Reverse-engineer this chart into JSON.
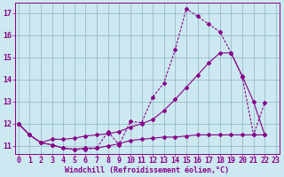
{
  "bg_color": "#cce8f0",
  "line_color": "#880088",
  "grid_color": "#99bbcc",
  "xlabel": "Windchill (Refroidissement éolien,°C)",
  "xlabel_fontsize": 6.0,
  "tick_fontsize": 6.0,
  "ylabel_ticks": [
    11,
    12,
    13,
    14,
    15,
    16,
    17
  ],
  "xlabel_ticks": [
    0,
    1,
    2,
    3,
    4,
    5,
    6,
    7,
    8,
    9,
    10,
    11,
    12,
    13,
    14,
    15,
    16,
    17,
    18,
    19,
    20,
    21,
    22,
    23
  ],
  "xlim": [
    -0.3,
    23.3
  ],
  "ylim": [
    10.65,
    17.45
  ],
  "line1_x": [
    0,
    1,
    2,
    3,
    4,
    5,
    6,
    7,
    8,
    9,
    10,
    11,
    12,
    13,
    14,
    15,
    16,
    17,
    18,
    19,
    20,
    21,
    22
  ],
  "line1_y": [
    12.0,
    11.5,
    11.15,
    11.05,
    10.9,
    10.85,
    10.85,
    10.9,
    11.65,
    11.05,
    12.1,
    12.05,
    13.2,
    13.85,
    15.35,
    17.2,
    16.85,
    16.5,
    16.15,
    15.2,
    14.1,
    11.5,
    12.95
  ],
  "line2_x": [
    0,
    1,
    2,
    3,
    4,
    5,
    6,
    7,
    8,
    9,
    10,
    11,
    12,
    13,
    14,
    15,
    16,
    17,
    18,
    19,
    20,
    21,
    22
  ],
  "line2_y": [
    12.0,
    11.5,
    11.15,
    11.3,
    11.3,
    11.35,
    11.45,
    11.5,
    11.55,
    11.65,
    11.85,
    12.0,
    12.2,
    12.6,
    13.1,
    13.65,
    14.2,
    14.75,
    15.2,
    15.2,
    14.15,
    13.0,
    11.5
  ],
  "line3_x": [
    0,
    1,
    2,
    3,
    4,
    5,
    6,
    7,
    8,
    9,
    10,
    11,
    12,
    13,
    14,
    15,
    16,
    17,
    18,
    19,
    20,
    21,
    22
  ],
  "line3_y": [
    12.0,
    11.5,
    11.15,
    11.05,
    10.9,
    10.85,
    10.9,
    10.9,
    11.0,
    11.1,
    11.25,
    11.3,
    11.35,
    11.4,
    11.4,
    11.45,
    11.5,
    11.5,
    11.5,
    11.5,
    11.5,
    11.5,
    11.5
  ]
}
